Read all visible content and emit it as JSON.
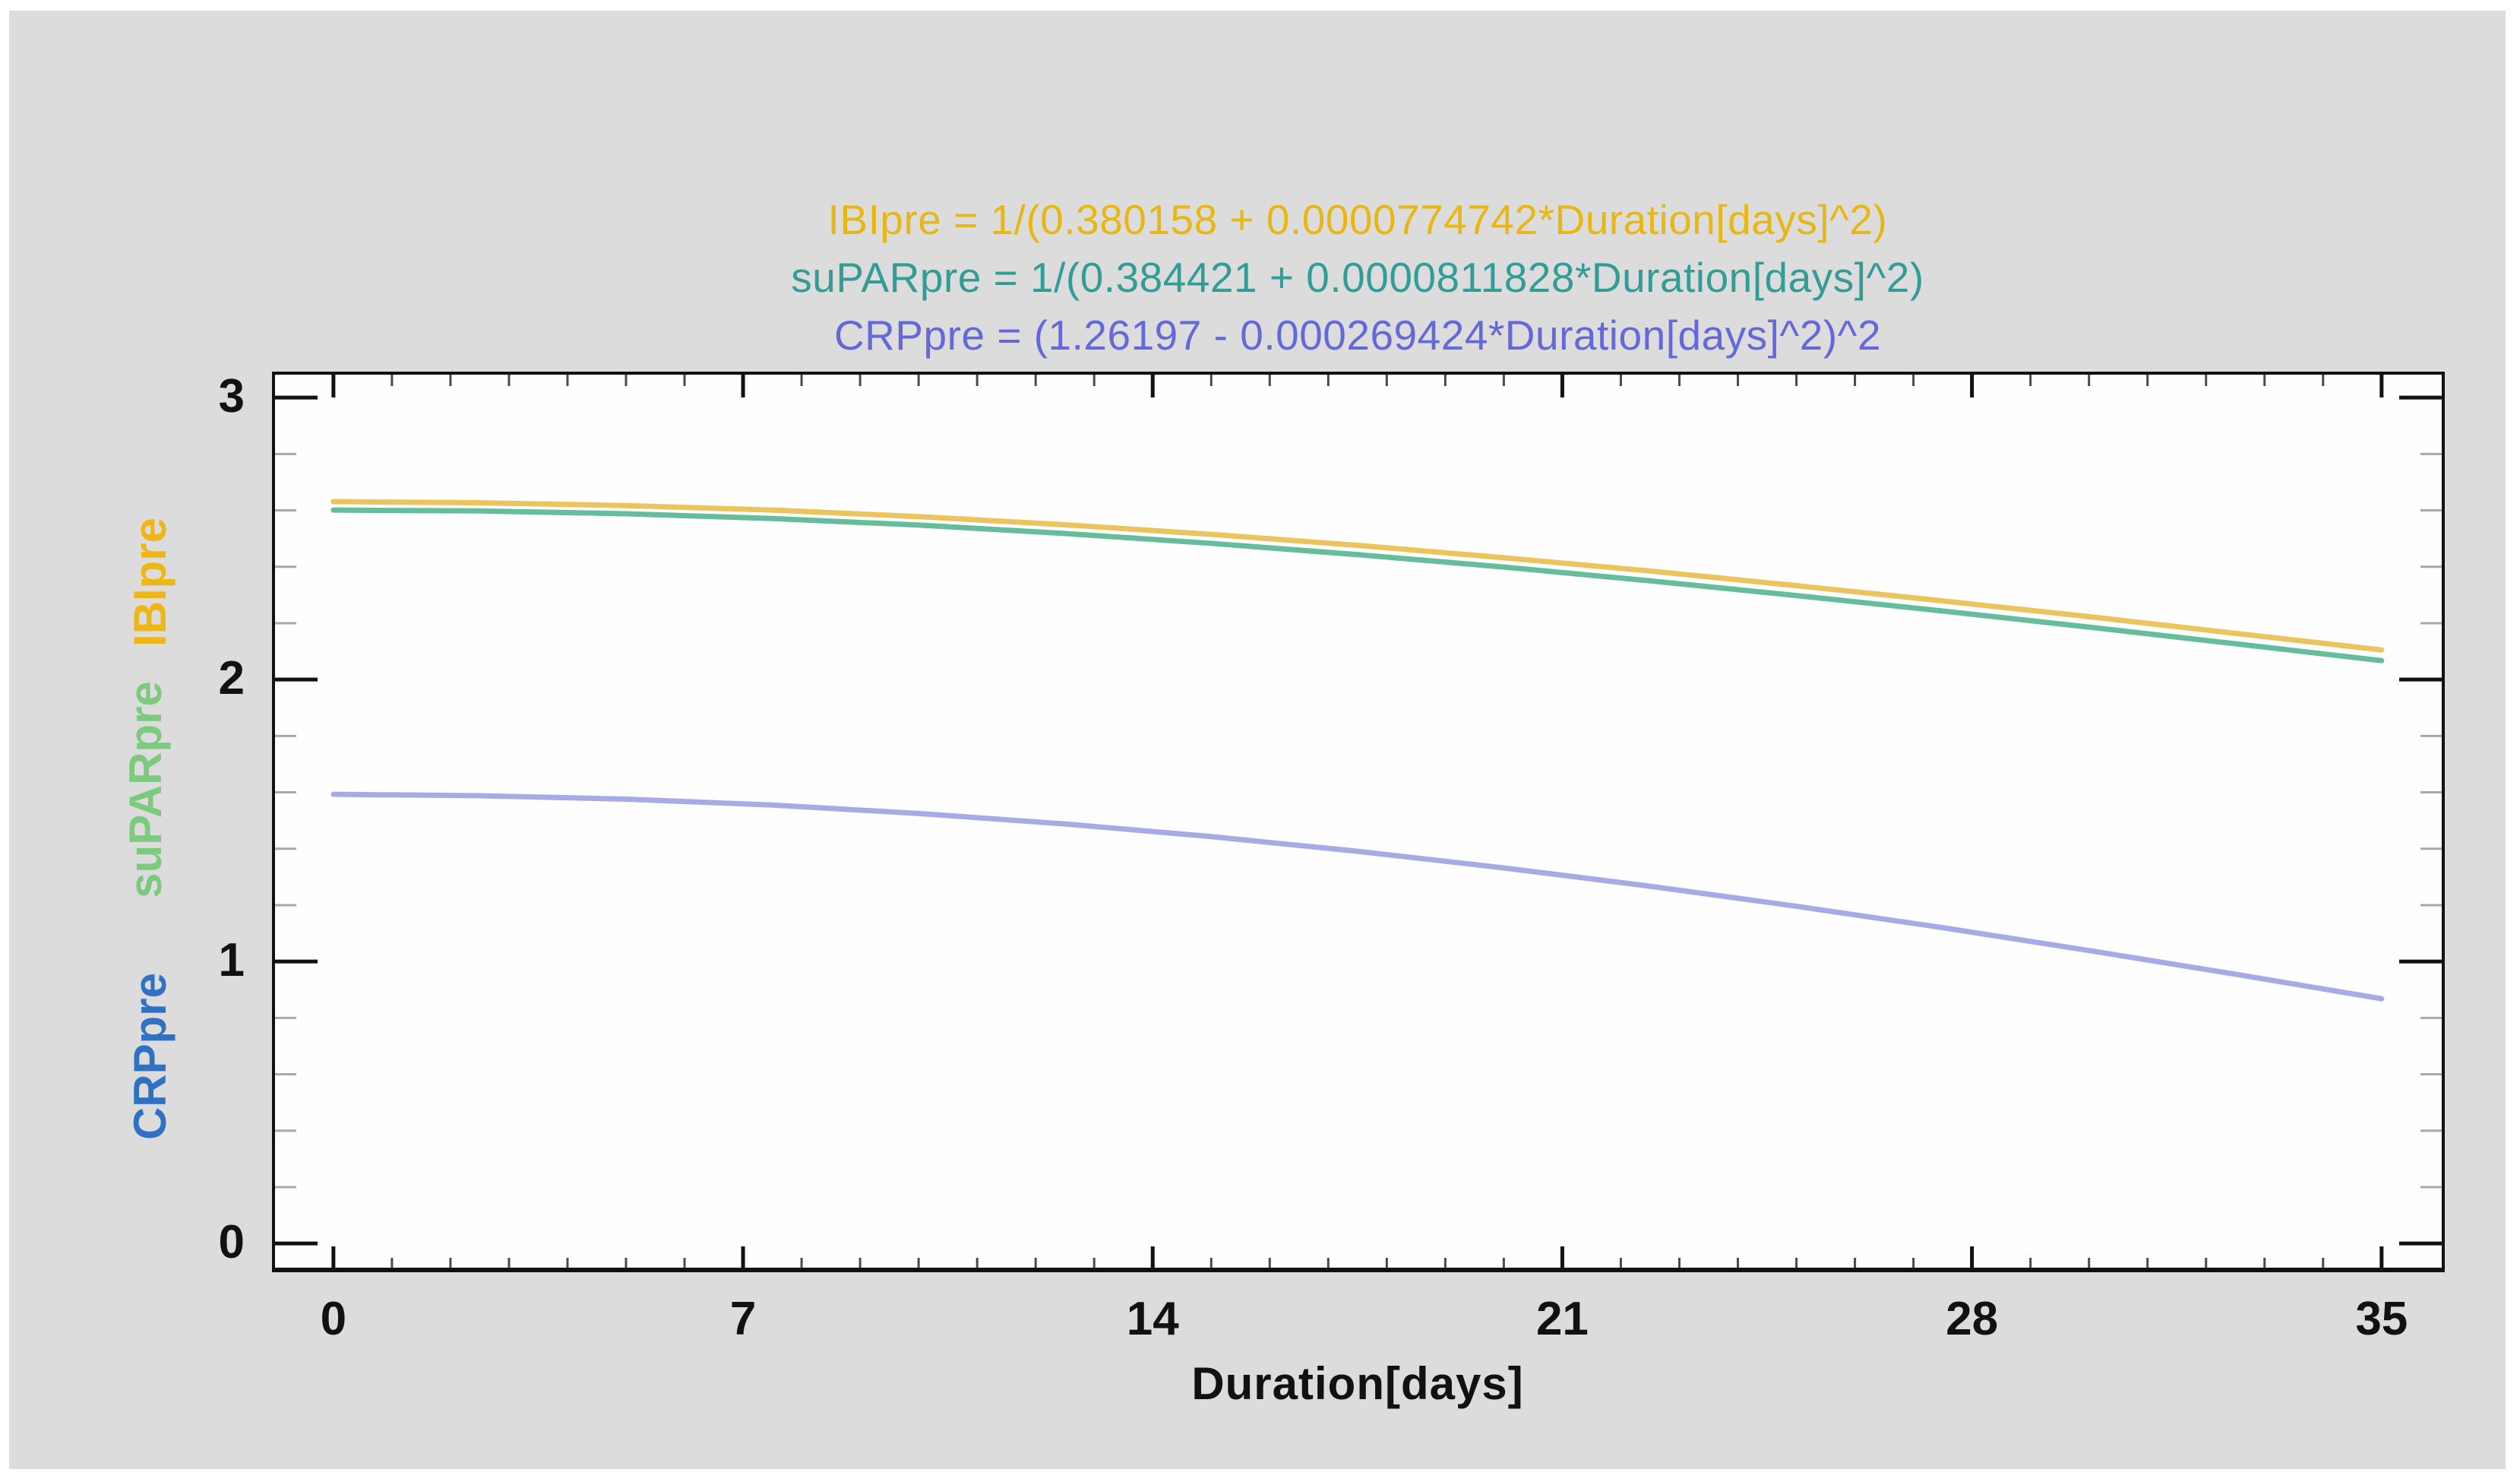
{
  "panel": {
    "page_background": "#ffffff",
    "panel_background": "#dcdcdc",
    "plot_background": "#fefefe",
    "axis_color": "#111111"
  },
  "chart_data": {
    "type": "line",
    "title_lines": [
      {
        "text": "IBIpre = 1/(0.380158 + 0.0000774742*Duration[days]^2)",
        "color": "#e9b713"
      },
      {
        "text": "suPARpre = 1/(0.384421 + 0.0000811828*Duration[days]^2)",
        "color": "#319d96"
      },
      {
        "text": "CRPpre = (1.26197 - 0.000269424*Duration[days]^2)^2",
        "color": "#6468d8"
      }
    ],
    "xlabel": "Duration[days]",
    "x_ticks": [
      0,
      7,
      14,
      21,
      28,
      35
    ],
    "x_minor_step": 1,
    "y_ticks": [
      0,
      1,
      2,
      3
    ],
    "y_minor_step": 0.2,
    "xlim": [
      -1.05,
      36.08
    ],
    "ylim": [
      -0.102,
      3.092
    ],
    "grid": false,
    "legend_position": "none",
    "ylabels": [
      {
        "text": "CRPpre",
        "color": "#2f72c4"
      },
      {
        "text": "suPARpre",
        "color": "#7bca7e"
      },
      {
        "text": "IBIpre",
        "color": "#efb713"
      }
    ],
    "series": [
      {
        "name": "IBIpre",
        "color": "#ecc45e",
        "formula": "IBIpre = 1/(0.380158 + 0.0000774742*Duration^2)",
        "x": [
          0,
          2.5,
          5,
          7.5,
          10,
          12.5,
          15,
          17.5,
          20,
          22.5,
          25,
          27.5,
          30,
          32.5,
          35
        ],
        "y": [
          2.631,
          2.627,
          2.617,
          2.601,
          2.578,
          2.549,
          2.515,
          2.476,
          2.432,
          2.385,
          2.333,
          2.279,
          2.223,
          2.164,
          2.105
        ]
      },
      {
        "name": "suPARpre",
        "color": "#66bd9b",
        "formula": "suPARpre = 1/(0.384421 + 0.0000811828*Duration^2)",
        "x": [
          0,
          2.5,
          5,
          7.5,
          10,
          12.5,
          15,
          17.5,
          20,
          22.5,
          25,
          27.5,
          30,
          32.5,
          35
        ],
        "y": [
          2.601,
          2.598,
          2.588,
          2.571,
          2.548,
          2.518,
          2.483,
          2.443,
          2.399,
          2.35,
          2.298,
          2.243,
          2.186,
          2.127,
          2.067
        ]
      },
      {
        "name": "CRPpre",
        "color": "#a6abe6",
        "formula": "CRPpre = (1.26197 - 0.000269424*Duration^2)^2",
        "x": [
          0,
          2.5,
          5,
          7.5,
          10,
          12.5,
          15,
          17.5,
          20,
          22.5,
          25,
          27.5,
          30,
          32.5,
          35
        ],
        "y": [
          1.593,
          1.588,
          1.576,
          1.555,
          1.525,
          1.488,
          1.443,
          1.391,
          1.332,
          1.267,
          1.196,
          1.12,
          1.039,
          0.955,
          0.868
        ]
      }
    ]
  }
}
